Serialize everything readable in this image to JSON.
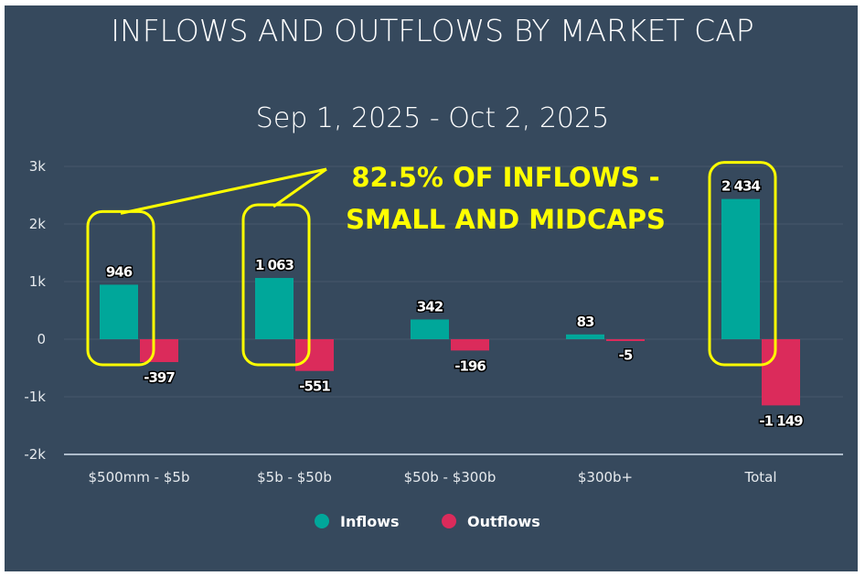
{
  "chart_data": {
    "type": "bar",
    "title": "INFLOWS AND OUTFLOWS BY MARKET CAP",
    "subtitle": "Sep 1, 2025 - Oct 2, 2025",
    "categories": [
      "$500mm - $5b",
      "$5b - $50b",
      "$50b - $300b",
      "$300b+",
      "Total"
    ],
    "series": [
      {
        "name": "Inflows",
        "color": "#00a79a",
        "values": [
          946,
          1063,
          342,
          83,
          2434
        ],
        "labels": [
          "946",
          "1 063",
          "342",
          "83",
          "2 434"
        ]
      },
      {
        "name": "Outflows",
        "color": "#db2b5b",
        "values": [
          -397,
          -551,
          -196,
          -5,
          -1149
        ],
        "labels": [
          "-397",
          "-551",
          "-196",
          "-5",
          "-1 149"
        ]
      }
    ],
    "ylim": [
      -2000,
      3000
    ],
    "yticks": [
      {
        "value": 3000,
        "label": "3k"
      },
      {
        "value": 2000,
        "label": "2k"
      },
      {
        "value": 1000,
        "label": "1k"
      },
      {
        "value": 0,
        "label": "0"
      },
      {
        "value": -1000,
        "label": "-1k"
      },
      {
        "value": -2000,
        "label": "-2k"
      }
    ],
    "xlabel": "",
    "ylabel": "",
    "grid": true,
    "legend": "bottom-center",
    "annotation": {
      "lines": [
        "82.5% OF INFLOWS -",
        "SMALL AND MIDCAPS"
      ],
      "color": "#ffff00",
      "highlighted_categories": [
        "$500mm - $5b",
        "$5b - $50b",
        "Total"
      ]
    }
  }
}
